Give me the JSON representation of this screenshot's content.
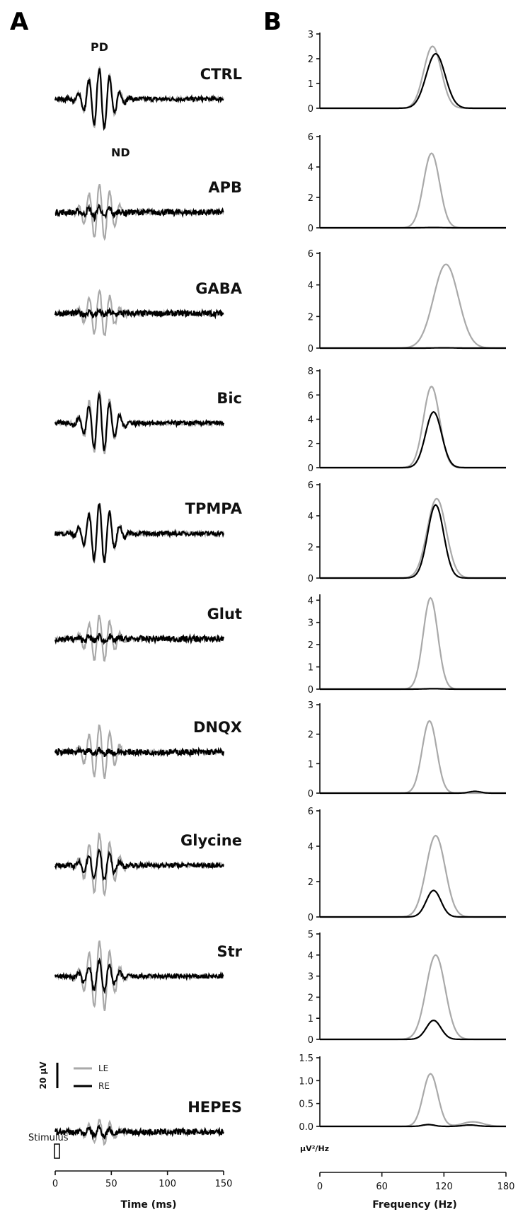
{
  "panels": {
    "a": "A",
    "b": "B"
  },
  "colors": {
    "LE": "#a9a9a9",
    "RE": "#000000"
  },
  "trace_annotations": {
    "positive": "PD",
    "negative": "ND"
  },
  "legend": {
    "scale_bar": "20 µV",
    "entries": [
      {
        "label": "LE",
        "color": "#a9a9a9"
      },
      {
        "label": "RE",
        "color": "#000000"
      }
    ]
  },
  "stimulus_label": "Stimulus",
  "chart_data": [
    {
      "type": "line",
      "panel": "A",
      "xlabel": "Time (ms)",
      "xlim": [
        0,
        150
      ],
      "xticks": [
        "0",
        "50",
        "100",
        "150"
      ],
      "stimulus_ms": [
        0,
        4
      ],
      "conditions": [
        {
          "name": "CTRL",
          "LE_amp_uV": 45,
          "RE_amp_uV": 42
        },
        {
          "name": "APB",
          "LE_amp_uV": 40,
          "RE_amp_uV": 8
        },
        {
          "name": "GABA",
          "LE_amp_uV": 33,
          "RE_amp_uV": 3
        },
        {
          "name": "Bic",
          "LE_amp_uV": 46,
          "RE_amp_uV": 40
        },
        {
          "name": "TPMPA",
          "LE_amp_uV": 44,
          "RE_amp_uV": 42
        },
        {
          "name": "Glut",
          "LE_amp_uV": 33,
          "RE_amp_uV": 4
        },
        {
          "name": "DNQX",
          "LE_amp_uV": 38,
          "RE_amp_uV": 3
        },
        {
          "name": "Glycine",
          "LE_amp_uV": 45,
          "RE_amp_uV": 22
        },
        {
          "name": "Str",
          "LE_amp_uV": 50,
          "RE_amp_uV": 22
        },
        {
          "name": "HEPES",
          "LE_amp_uV": 17,
          "RE_amp_uV": 6
        }
      ]
    },
    {
      "type": "line",
      "panel": "B",
      "xlabel": "Frequency (Hz)",
      "ylabel": "µV²/Hz",
      "xlim": [
        0,
        180
      ],
      "xticks": [
        "0",
        "60",
        "120",
        "180"
      ],
      "series_names": [
        "LE",
        "RE"
      ],
      "subplots": [
        {
          "name": "CTRL",
          "ylim": [
            0,
            3
          ],
          "yticks": [
            "0",
            "1",
            "2",
            "3"
          ],
          "LE": {
            "peak": 2.5,
            "center": 109,
            "width": 12
          },
          "RE": {
            "peak": 2.2,
            "center": 112,
            "width": 13
          }
        },
        {
          "name": "APB",
          "ylim": [
            0,
            6
          ],
          "yticks": [
            "0",
            "2",
            "4",
            "6"
          ],
          "LE": {
            "peak": 4.9,
            "center": 108,
            "width": 11
          },
          "RE": {
            "peak": 0.02,
            "center": 110,
            "width": 12
          }
        },
        {
          "name": "GABA",
          "ylim": [
            0,
            6
          ],
          "yticks": [
            "0",
            "2",
            "4",
            "6"
          ],
          "LE": {
            "peak": 5.3,
            "center": 122,
            "width": 17
          },
          "RE": {
            "peak": 0.02,
            "center": 120,
            "width": 12
          }
        },
        {
          "name": "Bic",
          "ylim": [
            0,
            8
          ],
          "yticks": [
            "0",
            "2",
            "4",
            "6",
            "8"
          ],
          "LE": {
            "peak": 6.7,
            "center": 108,
            "width": 11
          },
          "RE": {
            "peak": 4.6,
            "center": 110,
            "width": 11
          }
        },
        {
          "name": "TPMPA",
          "ylim": [
            0,
            6
          ],
          "yticks": [
            "0",
            "2",
            "4",
            "6"
          ],
          "LE": {
            "peak": 5.1,
            "center": 113,
            "width": 13
          },
          "RE": {
            "peak": 4.7,
            "center": 112,
            "width": 11
          }
        },
        {
          "name": "Glut",
          "ylim": [
            0,
            4.2
          ],
          "yticks": [
            "0",
            "1",
            "2",
            "3",
            "4"
          ],
          "LE": {
            "peak": 4.1,
            "center": 107,
            "width": 10
          },
          "RE": {
            "peak": 0.02,
            "center": 110,
            "width": 12
          }
        },
        {
          "name": "DNQX",
          "ylim": [
            0,
            3
          ],
          "yticks": [
            "0",
            "1",
            "2",
            "3"
          ],
          "LE": {
            "peak": 2.45,
            "center": 106,
            "width": 10
          },
          "RE": {
            "peak": 0.06,
            "center": 150,
            "width": 8
          }
        },
        {
          "name": "Glycine",
          "ylim": [
            0,
            6
          ],
          "yticks": [
            "0",
            "2",
            "4",
            "6"
          ],
          "LE": {
            "peak": 4.6,
            "center": 112,
            "width": 13
          },
          "RE": {
            "peak": 1.5,
            "center": 110,
            "width": 10
          }
        },
        {
          "name": "Str",
          "ylim": [
            0,
            5
          ],
          "yticks": [
            "0",
            "1",
            "2",
            "3",
            "4",
            "5"
          ],
          "LE": {
            "peak": 4.0,
            "center": 112,
            "width": 13
          },
          "RE": {
            "peak": 0.9,
            "center": 110,
            "width": 10
          }
        },
        {
          "name": "HEPES",
          "ylim": [
            0,
            1.5
          ],
          "yticks": [
            "0.0",
            "0.5",
            "1.0",
            "1.5"
          ],
          "LE": {
            "peak": 1.15,
            "center": 107,
            "width": 10,
            "tail": 0.1,
            "tail_center": 148,
            "tail_width": 14
          },
          "RE": {
            "peak": 0.04,
            "center": 105,
            "width": 8,
            "tail": 0.03,
            "tail_center": 145,
            "tail_width": 10
          }
        }
      ]
    }
  ]
}
